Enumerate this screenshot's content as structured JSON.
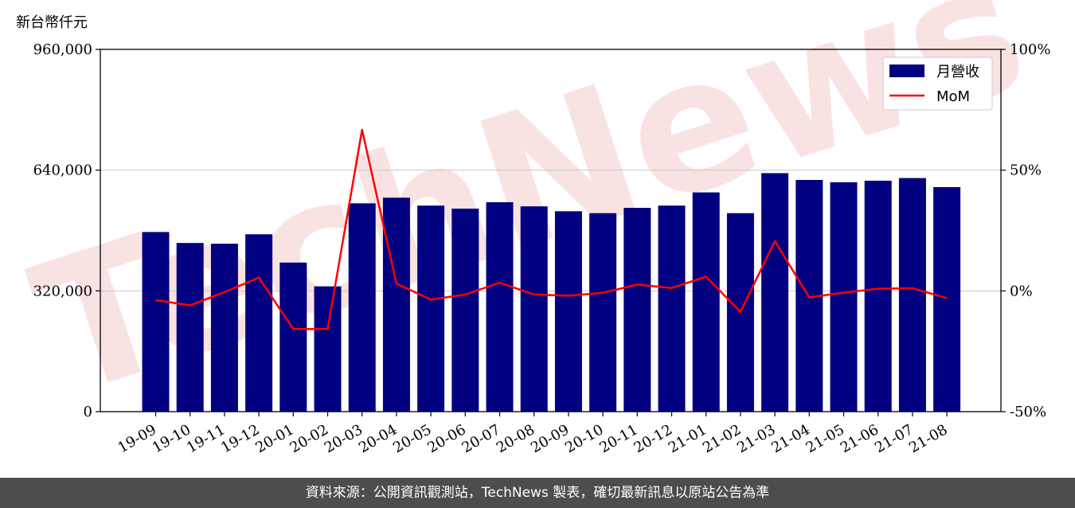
{
  "chart_data": {
    "type": "bar",
    "ylabel": "新台幣仟元",
    "categories": [
      "19-09",
      "19-10",
      "19-11",
      "19-12",
      "20-01",
      "20-02",
      "20-03",
      "20-04",
      "20-05",
      "20-06",
      "20-07",
      "20-08",
      "20-09",
      "20-10",
      "20-11",
      "20-12",
      "21-01",
      "21-02",
      "21-03",
      "21-04",
      "21-05",
      "21-06",
      "21-07",
      "21-08"
    ],
    "series": [
      {
        "name": "月營收",
        "type": "bar",
        "axis": "left",
        "color": "#000080",
        "values": [
          476000,
          447000,
          445000,
          470000,
          395000,
          332000,
          552000,
          567000,
          546000,
          538000,
          555000,
          544000,
          531000,
          526000,
          540000,
          546000,
          581000,
          526000,
          632000,
          614000,
          608000,
          612000,
          619000,
          595000
        ]
      },
      {
        "name": "MoM",
        "type": "line",
        "axis": "right",
        "color": "#ff0000",
        "values": [
          -3.8,
          -6.0,
          -0.5,
          5.5,
          -15.8,
          -15.8,
          66.7,
          3.0,
          -3.6,
          -1.5,
          3.4,
          -1.5,
          -2.0,
          -0.8,
          2.6,
          1.2,
          5.9,
          -8.7,
          20.6,
          -2.7,
          -0.7,
          0.9,
          1.1,
          -3.0
        ]
      }
    ],
    "y_left": {
      "min": 0,
      "max": 960000,
      "ticks": [
        "0",
        "320,000",
        "640,000",
        "960,000"
      ]
    },
    "y_right": {
      "min": -50,
      "max": 100,
      "ticks": [
        "-50%",
        "0%",
        "50%",
        "100%"
      ]
    },
    "grid": "horizontal",
    "legend_position": "top-right"
  },
  "watermark": "TechNews",
  "footer": {
    "text": "資料來源：公開資訊觀測站，TechNews 製表，確切最新訊息以原站公告為準"
  }
}
